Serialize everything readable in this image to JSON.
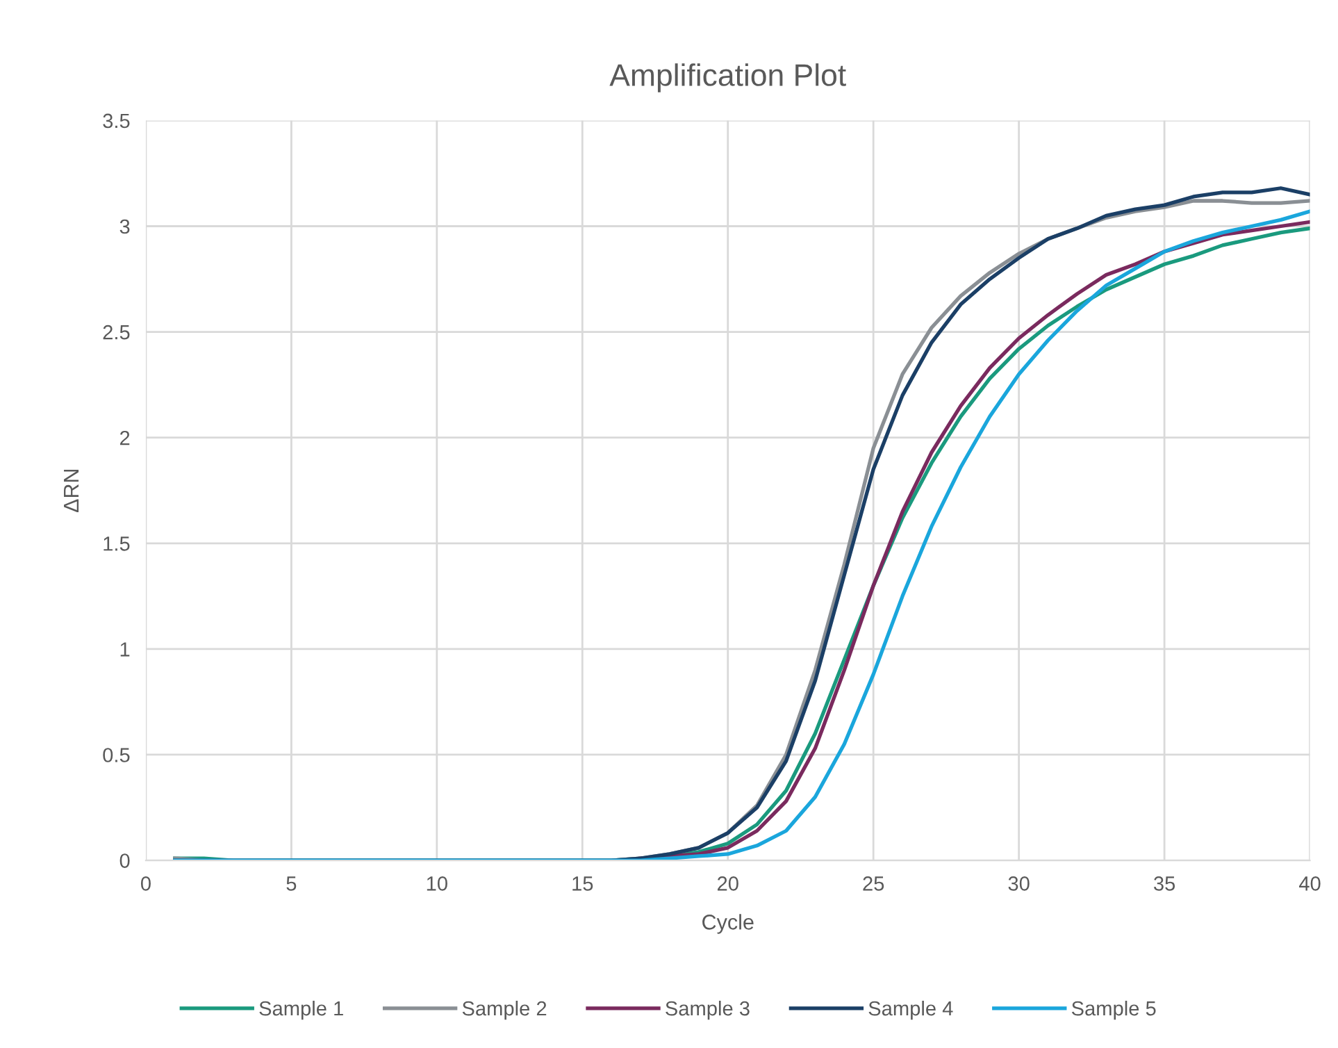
{
  "chart_data": {
    "type": "line",
    "title": "Amplification Plot",
    "xlabel": "Cycle",
    "ylabel": "ΔRN",
    "x": [
      1,
      2,
      3,
      4,
      5,
      6,
      7,
      8,
      9,
      10,
      11,
      12,
      13,
      14,
      15,
      16,
      17,
      18,
      19,
      20,
      21,
      22,
      23,
      24,
      25,
      26,
      27,
      28,
      29,
      30,
      31,
      32,
      33,
      34,
      35,
      36,
      37,
      38,
      39,
      40
    ],
    "series": [
      {
        "name": "Sample 1",
        "color": "#1a9a7e",
        "values": [
          0.01,
          0.01,
          0,
          0,
          0,
          0,
          0,
          0,
          0,
          0,
          0,
          0,
          0,
          0,
          0,
          0,
          0.01,
          0.02,
          0.04,
          0.08,
          0.17,
          0.33,
          0.6,
          0.95,
          1.3,
          1.62,
          1.88,
          2.1,
          2.28,
          2.42,
          2.53,
          2.62,
          2.7,
          2.76,
          2.82,
          2.86,
          2.91,
          2.94,
          2.97,
          2.99
        ]
      },
      {
        "name": "Sample 2",
        "color": "#8a8f94",
        "values": [
          0.01,
          0,
          0,
          0,
          0,
          0,
          0,
          0,
          0,
          0,
          0,
          0,
          0,
          0,
          0,
          0,
          0.01,
          0.03,
          0.06,
          0.13,
          0.26,
          0.5,
          0.9,
          1.4,
          1.95,
          2.3,
          2.52,
          2.67,
          2.78,
          2.87,
          2.94,
          2.99,
          3.04,
          3.07,
          3.09,
          3.12,
          3.12,
          3.11,
          3.11,
          3.12
        ]
      },
      {
        "name": "Sample 3",
        "color": "#7a2a5e",
        "values": [
          null,
          null,
          null,
          null,
          null,
          null,
          null,
          null,
          null,
          null,
          null,
          null,
          null,
          null,
          null,
          null,
          0.01,
          0.02,
          0.03,
          0.06,
          0.14,
          0.28,
          0.53,
          0.9,
          1.3,
          1.65,
          1.93,
          2.15,
          2.33,
          2.47,
          2.58,
          2.68,
          2.77,
          2.82,
          2.88,
          2.92,
          2.96,
          2.98,
          3.0,
          3.02
        ]
      },
      {
        "name": "Sample 4",
        "color": "#1b3f66",
        "values": [
          0,
          0,
          0,
          0,
          0,
          0,
          0,
          0,
          0,
          0,
          0,
          0,
          0,
          0,
          0,
          0,
          0.01,
          0.03,
          0.06,
          0.13,
          0.25,
          0.47,
          0.85,
          1.35,
          1.85,
          2.2,
          2.45,
          2.63,
          2.75,
          2.85,
          2.94,
          2.99,
          3.05,
          3.08,
          3.1,
          3.14,
          3.16,
          3.16,
          3.18,
          3.15
        ]
      },
      {
        "name": "Sample 5",
        "color": "#1aa6dc",
        "values": [
          0,
          0,
          0,
          0,
          0,
          0,
          0,
          0,
          0,
          0,
          0,
          0,
          0,
          0,
          0,
          0,
          0,
          0.01,
          0.02,
          0.03,
          0.07,
          0.14,
          0.3,
          0.55,
          0.88,
          1.25,
          1.58,
          1.86,
          2.1,
          2.3,
          2.46,
          2.6,
          2.72,
          2.8,
          2.88,
          2.93,
          2.97,
          3.0,
          3.03,
          3.07
        ]
      }
    ],
    "xlim": [
      0,
      40
    ],
    "xticks": [
      0,
      5,
      10,
      15,
      20,
      25,
      30,
      35,
      40
    ],
    "ylim": [
      0,
      3.5
    ],
    "yticks": [
      0,
      0.5,
      1,
      1.5,
      2,
      2.5,
      3,
      3.5
    ],
    "grid": true,
    "legend": "bottom",
    "line_style": "solid",
    "marker": "none"
  }
}
